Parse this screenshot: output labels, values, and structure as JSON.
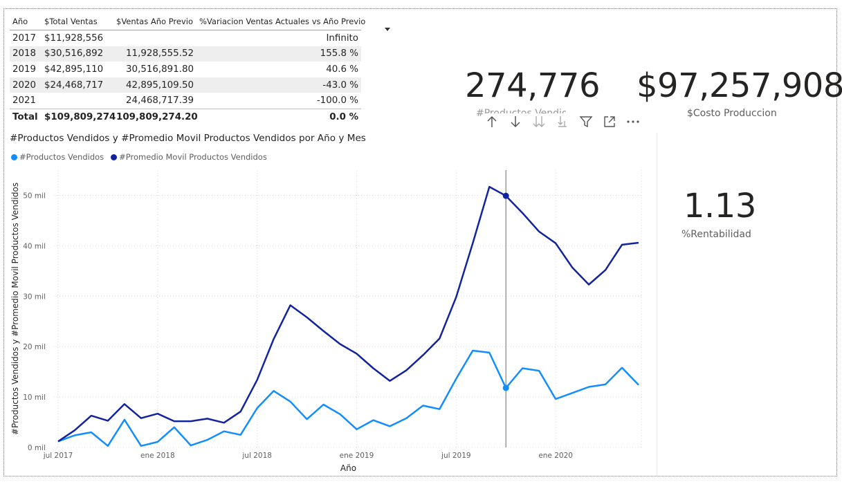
{
  "table": {
    "headers": [
      "Año",
      "$Total Ventas",
      "$Ventas Año Previo",
      "%Variacion Ventas Actuales vs Año Previo"
    ],
    "rows": [
      {
        "year": "2017",
        "total": "$11,928,556",
        "previo": "",
        "variacion": "Infinito"
      },
      {
        "year": "2018",
        "total": "$30,516,892",
        "previo": "11,928,555.52",
        "variacion": "155.8 %"
      },
      {
        "year": "2019",
        "total": "$42,895,110",
        "previo": "30,516,891.80",
        "variacion": "40.6 %"
      },
      {
        "year": "2020",
        "total": "$24,468,717",
        "previo": "42,895,109.50",
        "variacion": "-43.0 %"
      },
      {
        "year": "2021",
        "total": "",
        "previo": "24,468,717.39",
        "variacion": "-100.0 %"
      }
    ],
    "total": {
      "label": "Total",
      "total": "$109,809,274",
      "previo": "109,809,274.20",
      "variacion": "0.0 %"
    }
  },
  "cards": {
    "productos": {
      "value": "274,776",
      "label": "#Productos Vendidos"
    },
    "costo": {
      "value": "$97,257,908",
      "label": "$Costo Produccion"
    },
    "rentabilidad": {
      "value": "1.13",
      "label": "%Rentabilidad"
    }
  },
  "toolbar": {
    "icons": [
      "arrow-up-icon",
      "arrow-down-icon",
      "double-arrow-down-icon",
      "expand-hierarchy-icon",
      "filter-icon",
      "focus-mode-icon",
      "more-options-icon"
    ]
  },
  "colors": {
    "productos": "#118DFF",
    "promedio": "#12239E",
    "crosshair": "#808080"
  },
  "chart_data": {
    "type": "line",
    "title": "#Productos Vendidos y #Promedio Movil Productos Vendidos por Año y Mes",
    "xlabel": "Año",
    "ylabel": "#Productos Vendidos y #Promedio Movil Productos Vendidos",
    "x": [
      "2017-07",
      "2017-08",
      "2017-09",
      "2017-10",
      "2017-11",
      "2017-12",
      "2018-01",
      "2018-02",
      "2018-03",
      "2018-04",
      "2018-05",
      "2018-06",
      "2018-07",
      "2018-08",
      "2018-09",
      "2018-10",
      "2018-11",
      "2018-12",
      "2019-01",
      "2019-02",
      "2019-03",
      "2019-04",
      "2019-05",
      "2019-06",
      "2019-07",
      "2019-08",
      "2019-09",
      "2019-10",
      "2019-11",
      "2019-12",
      "2020-01",
      "2020-02",
      "2020-03",
      "2020-04",
      "2020-05",
      "2020-06"
    ],
    "x_ticks": [
      {
        "x": "2017-07",
        "label": "jul 2017"
      },
      {
        "x": "2018-01",
        "label": "ene 2018"
      },
      {
        "x": "2018-07",
        "label": "jul 2018"
      },
      {
        "x": "2019-01",
        "label": "ene 2019"
      },
      {
        "x": "2019-07",
        "label": "jul 2019"
      },
      {
        "x": "2020-01",
        "label": "ene 2020"
      }
    ],
    "y_ticks": [
      {
        "value": 0,
        "label": "0 mil"
      },
      {
        "value": 10000,
        "label": "10 mil"
      },
      {
        "value": 20000,
        "label": "20 mil"
      },
      {
        "value": 30000,
        "label": "30 mil"
      },
      {
        "value": 40000,
        "label": "40 mil"
      },
      {
        "value": 50000,
        "label": "50 mil"
      }
    ],
    "ylim": [
      0,
      55000
    ],
    "legend": "top-left",
    "grid": true,
    "highlight_x": "2019-10",
    "series": [
      {
        "name": "#Productos Vendidos",
        "color": "#118DFF",
        "values": [
          1200,
          2400,
          3000,
          300,
          5500,
          300,
          1100,
          4000,
          400,
          1500,
          3200,
          2500,
          7800,
          11200,
          9100,
          5600,
          8500,
          6600,
          3600,
          5400,
          4200,
          5800,
          8300,
          7600,
          13600,
          19200,
          18800,
          11800,
          15700,
          15200,
          9600,
          10800,
          12000,
          12500,
          15800,
          12400
        ]
      },
      {
        "name": "#Promedio Movil Productos Vendidos",
        "color": "#12239E",
        "values": [
          1200,
          3400,
          6300,
          5300,
          8600,
          5800,
          6700,
          5200,
          5200,
          5700,
          4900,
          7100,
          13400,
          21500,
          28200,
          25800,
          23100,
          20500,
          18600,
          15700,
          13200,
          15300,
          18300,
          21600,
          29800,
          40500,
          51700,
          49900,
          46500,
          42800,
          40500,
          35700,
          32300,
          35200,
          40200,
          40600
        ]
      }
    ]
  }
}
